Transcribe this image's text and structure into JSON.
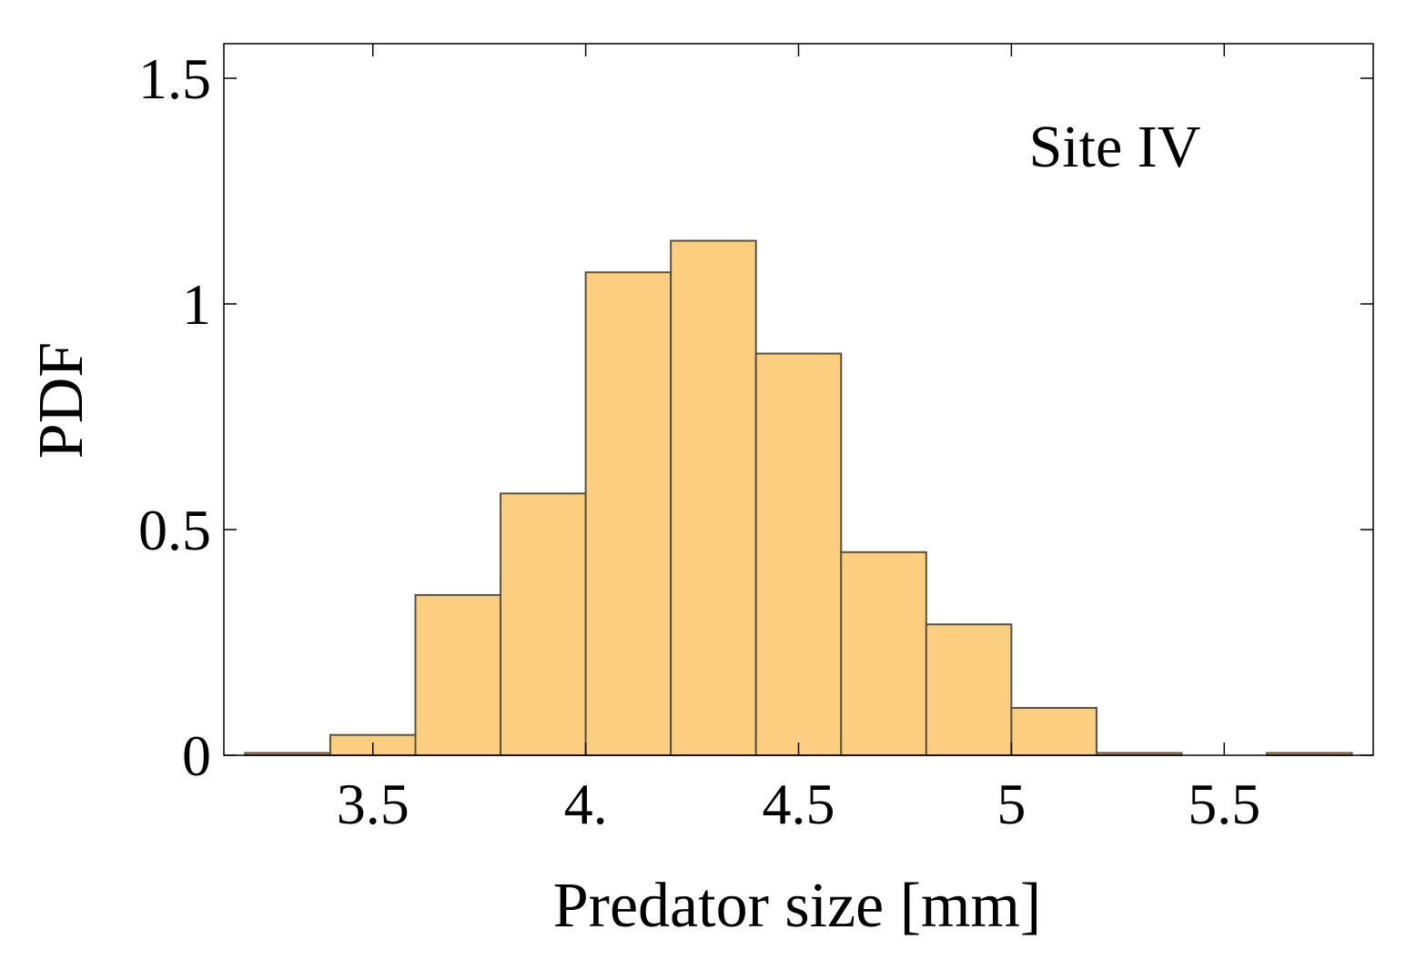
{
  "chart_data": {
    "type": "bar",
    "histogram": true,
    "bin_edges": [
      3.2,
      3.4,
      3.6,
      3.8,
      4.0,
      4.2,
      4.4,
      4.6,
      4.8,
      5.0,
      5.2,
      5.4,
      5.6,
      5.8
    ],
    "values": [
      0.005,
      0.045,
      0.355,
      0.58,
      1.07,
      1.14,
      0.89,
      0.45,
      0.29,
      0.105,
      0.005,
      0.0,
      0.005
    ],
    "title": "",
    "annotation": "Site IV",
    "xlabel": "Predator size  [mm]",
    "ylabel": "PDF",
    "xlim": [
      3.15,
      5.85
    ],
    "ylim": [
      0,
      1.6
    ],
    "xticks": [
      {
        "value": 3.5,
        "label": "3.5"
      },
      {
        "value": 4.0,
        "label": "4."
      },
      {
        "value": 4.5,
        "label": "4.5"
      },
      {
        "value": 5.0,
        "label": "5"
      },
      {
        "value": 5.5,
        "label": "5.5"
      }
    ],
    "yticks": [
      {
        "value": 0,
        "label": "0"
      },
      {
        "value": 0.5,
        "label": "0.5"
      },
      {
        "value": 1.0,
        "label": "1"
      },
      {
        "value": 1.5,
        "label": "1.5"
      }
    ],
    "bar_color": "#fccf80",
    "grid": false
  }
}
